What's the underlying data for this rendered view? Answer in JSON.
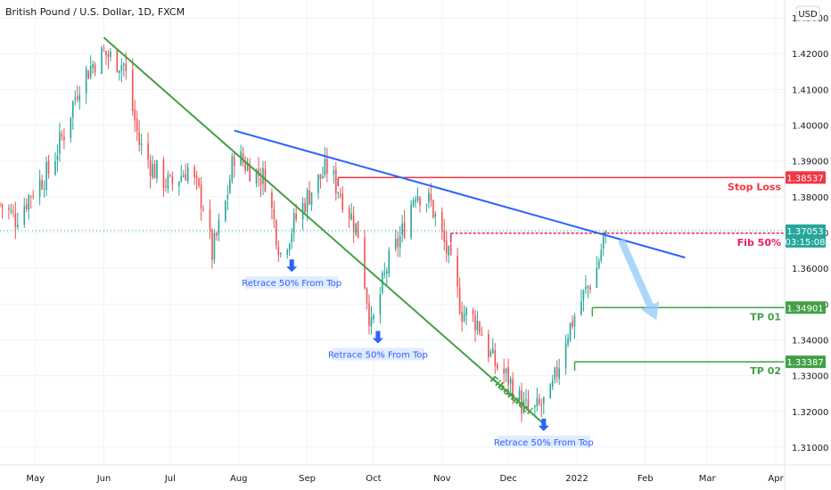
{
  "header": {
    "title": "British Pound / U.S. Dollar, 1D, FXCM",
    "currency_button": "USD"
  },
  "colors": {
    "up": "#26a69a",
    "down": "#ef5350",
    "trend_green": "#43a047",
    "resistance_blue": "#2962ff",
    "stop_red": "#f23645",
    "fib_pink": "#e91e63",
    "tp_green": "#43a047",
    "arrow_blue": "#2962ff",
    "projection": "#90caf9"
  },
  "chart_data": {
    "type": "candlestick",
    "title": "British Pound / U.S. Dollar, 1D, FXCM",
    "ylim": [
      1.305,
      1.435
    ],
    "y_ticks": [
      {
        "value": 1.43,
        "label": "1.43000"
      },
      {
        "value": 1.42,
        "label": "1.42000"
      },
      {
        "value": 1.41,
        "label": "1.41000"
      },
      {
        "value": 1.4,
        "label": "1.40000"
      },
      {
        "value": 1.39,
        "label": "1.39000"
      },
      {
        "value": 1.38,
        "label": "1.38000"
      },
      {
        "value": 1.37,
        "label": "1.37000"
      },
      {
        "value": 1.36,
        "label": "1.36000"
      },
      {
        "value": 1.35,
        "label": "1.35000"
      },
      {
        "value": 1.34,
        "label": "1.34000"
      },
      {
        "value": 1.33,
        "label": "1.33000"
      },
      {
        "value": 1.32,
        "label": "1.32000"
      },
      {
        "value": 1.31,
        "label": "1.31000"
      }
    ],
    "x_range": [
      "2021-04-15",
      "2022-04-05"
    ],
    "x_ticks": [
      {
        "date": "2021-05-01",
        "label": "May"
      },
      {
        "date": "2021-06-01",
        "label": "Jun"
      },
      {
        "date": "2021-07-01",
        "label": "Jul"
      },
      {
        "date": "2021-08-01",
        "label": "Aug"
      },
      {
        "date": "2021-09-01",
        "label": "Sep"
      },
      {
        "date": "2021-10-01",
        "label": "Oct"
      },
      {
        "date": "2021-11-01",
        "label": "Nov"
      },
      {
        "date": "2021-12-01",
        "label": "Dec"
      },
      {
        "date": "2022-01-01",
        "label": "2022"
      },
      {
        "date": "2022-02-01",
        "label": "Feb"
      },
      {
        "date": "2022-03-01",
        "label": "Mar"
      },
      {
        "date": "2022-04-01",
        "label": "Apr"
      }
    ],
    "price_path": [
      {
        "date": "2021-04-15",
        "close": 1.378
      },
      {
        "date": "2021-04-22",
        "close": 1.374
      },
      {
        "date": "2021-04-30",
        "close": 1.382
      },
      {
        "date": "2021-05-07",
        "close": 1.387
      },
      {
        "date": "2021-05-14",
        "close": 1.398
      },
      {
        "date": "2021-05-21",
        "close": 1.412
      },
      {
        "date": "2021-05-28",
        "close": 1.418
      },
      {
        "date": "2021-06-01",
        "close": 1.42
      },
      {
        "date": "2021-06-10",
        "close": 1.417
      },
      {
        "date": "2021-06-17",
        "close": 1.395
      },
      {
        "date": "2021-06-23",
        "close": 1.388
      },
      {
        "date": "2021-07-01",
        "close": 1.383
      },
      {
        "date": "2021-07-09",
        "close": 1.388
      },
      {
        "date": "2021-07-16",
        "close": 1.378
      },
      {
        "date": "2021-07-20",
        "close": 1.364
      },
      {
        "date": "2021-07-26",
        "close": 1.378
      },
      {
        "date": "2021-07-30",
        "close": 1.392
      },
      {
        "date": "2021-08-06",
        "close": 1.388
      },
      {
        "date": "2021-08-13",
        "close": 1.385
      },
      {
        "date": "2021-08-20",
        "close": 1.364
      },
      {
        "date": "2021-08-27",
        "close": 1.374
      },
      {
        "date": "2021-09-03",
        "close": 1.382
      },
      {
        "date": "2021-09-10",
        "close": 1.388
      },
      {
        "date": "2021-09-17",
        "close": 1.38
      },
      {
        "date": "2021-09-24",
        "close": 1.37
      },
      {
        "date": "2021-09-30",
        "close": 1.343
      },
      {
        "date": "2021-10-07",
        "close": 1.36
      },
      {
        "date": "2021-10-14",
        "close": 1.37
      },
      {
        "date": "2021-10-20",
        "close": 1.382
      },
      {
        "date": "2021-10-27",
        "close": 1.378
      },
      {
        "date": "2021-11-03",
        "close": 1.365
      },
      {
        "date": "2021-11-10",
        "close": 1.348
      },
      {
        "date": "2021-11-17",
        "close": 1.345
      },
      {
        "date": "2021-11-24",
        "close": 1.334
      },
      {
        "date": "2021-12-01",
        "close": 1.329
      },
      {
        "date": "2021-12-08",
        "close": 1.321
      },
      {
        "date": "2021-12-13",
        "close": 1.32
      },
      {
        "date": "2021-12-20",
        "close": 1.324
      },
      {
        "date": "2021-12-27",
        "close": 1.341
      },
      {
        "date": "2022-01-03",
        "close": 1.351
      },
      {
        "date": "2022-01-10",
        "close": 1.36
      },
      {
        "date": "2022-01-14",
        "close": 1.3705
      }
    ],
    "horizontal_levels": [
      {
        "name": "Stop Loss",
        "label": "Stop Loss",
        "value": 1.38537,
        "tag": "1.38537",
        "start": "2021-09-15",
        "color": "#f23645"
      },
      {
        "name": "Fib 50%",
        "label": "Fib 50%",
        "value": 1.36981,
        "tag": "1.36981",
        "start": "2021-11-05",
        "color": "#e91e63"
      },
      {
        "name": "TP 01",
        "label": "TP 01",
        "value": 1.34901,
        "tag": "1.34901",
        "start": "2022-01-08",
        "color": "#43a047"
      },
      {
        "name": "TP 02",
        "label": "TP 02",
        "value": 1.33387,
        "tag": "1.33387",
        "start": "2021-12-31",
        "color": "#43a047"
      }
    ],
    "current_price": {
      "value": 1.37053,
      "tag": "1.37053",
      "countdown": "03:15:08"
    },
    "trendlines": [
      {
        "name": "descending-green",
        "label": "Fibonacci",
        "from": {
          "date": "2021-06-01",
          "value": 1.4245
        },
        "to": {
          "date": "2021-12-18",
          "value": 1.316
        },
        "color": "#43a047"
      },
      {
        "name": "resistance-blue",
        "from": {
          "date": "2021-07-30",
          "value": 1.3985
        },
        "to": {
          "date": "2022-02-19",
          "value": 1.363
        },
        "color": "#2962ff"
      }
    ],
    "retrace_annotations": [
      {
        "label": "Retrace 50% From Top",
        "arrow_date": "2021-08-25",
        "value": 1.359
      },
      {
        "label": "Retrace 50% From Top",
        "arrow_date": "2021-10-03",
        "value": 1.339
      },
      {
        "label": "Retrace 50% From Top",
        "arrow_date": "2021-12-17",
        "value": 1.3145
      }
    ]
  }
}
